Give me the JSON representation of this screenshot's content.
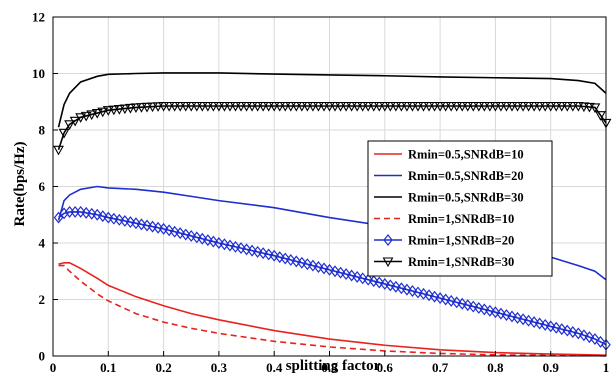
{
  "chart_data": {
    "type": "line",
    "title": "",
    "xlabel": "splitting factor",
    "ylabel": "Rate(bps/Hz)",
    "xlim": [
      0,
      1
    ],
    "ylim": [
      0,
      12
    ],
    "x_ticks": [
      "0",
      "0.1",
      "0.2",
      "0.3",
      "0.4",
      "0.5",
      "0.6",
      "0.7",
      "0.8",
      "0.9",
      "1"
    ],
    "y_ticks": [
      "0",
      "2",
      "4",
      "6",
      "8",
      "10",
      "12"
    ],
    "grid": true,
    "legend_position": "right",
    "x": [
      0.01,
      0.02,
      0.03,
      0.05,
      0.08,
      0.1,
      0.15,
      0.2,
      0.25,
      0.3,
      0.4,
      0.5,
      0.6,
      0.7,
      0.8,
      0.9,
      0.95,
      0.98,
      1.0
    ],
    "series": [
      {
        "name": "Rmin=0.5,SNRdB=10",
        "color": "#e8231e",
        "dash": "solid",
        "marker": "none",
        "values": [
          3.25,
          3.3,
          3.3,
          3.1,
          2.75,
          2.5,
          2.1,
          1.78,
          1.5,
          1.28,
          0.9,
          0.6,
          0.38,
          0.22,
          0.12,
          0.07,
          0.05,
          0.04,
          0.03
        ]
      },
      {
        "name": "Rmin=0.5,SNRdB=20",
        "color": "#1f2ed0",
        "dash": "solid",
        "marker": "none",
        "values": [
          4.8,
          5.5,
          5.7,
          5.9,
          6.0,
          5.95,
          5.9,
          5.8,
          5.65,
          5.5,
          5.25,
          4.9,
          4.6,
          4.25,
          3.9,
          3.5,
          3.2,
          3.0,
          2.7
        ]
      },
      {
        "name": "Rmin=0.5,SNRdB=30",
        "color": "#000000",
        "dash": "solid",
        "marker": "none",
        "values": [
          8.1,
          8.9,
          9.3,
          9.7,
          9.9,
          9.97,
          10.0,
          10.02,
          10.02,
          10.02,
          9.98,
          9.95,
          9.92,
          9.88,
          9.85,
          9.82,
          9.75,
          9.65,
          9.3
        ]
      },
      {
        "name": "Rmin=1,SNRdB=10",
        "color": "#e8231e",
        "dash": "dashed",
        "marker": "none",
        "values": [
          3.2,
          3.2,
          3.0,
          2.65,
          2.2,
          1.95,
          1.5,
          1.2,
          0.98,
          0.8,
          0.52,
          0.32,
          0.18,
          0.09,
          0.04,
          0.02,
          0.01,
          0.01,
          0.0
        ]
      },
      {
        "name": "Rmin=1,SNRdB=20",
        "color": "#1f2ed0",
        "dash": "solid",
        "marker": "diamond",
        "values": [
          4.9,
          5.05,
          5.1,
          5.1,
          5.0,
          4.9,
          4.7,
          4.5,
          4.25,
          4.0,
          3.55,
          3.05,
          2.55,
          2.05,
          1.55,
          1.05,
          0.8,
          0.6,
          0.4
        ]
      },
      {
        "name": "Rmin=1,SNRdB=30",
        "color": "#000000",
        "dash": "solid",
        "marker": "triangle-down",
        "values": [
          7.3,
          7.9,
          8.2,
          8.45,
          8.6,
          8.7,
          8.8,
          8.85,
          8.85,
          8.85,
          8.85,
          8.85,
          8.85,
          8.85,
          8.85,
          8.85,
          8.85,
          8.8,
          8.25
        ]
      }
    ]
  }
}
